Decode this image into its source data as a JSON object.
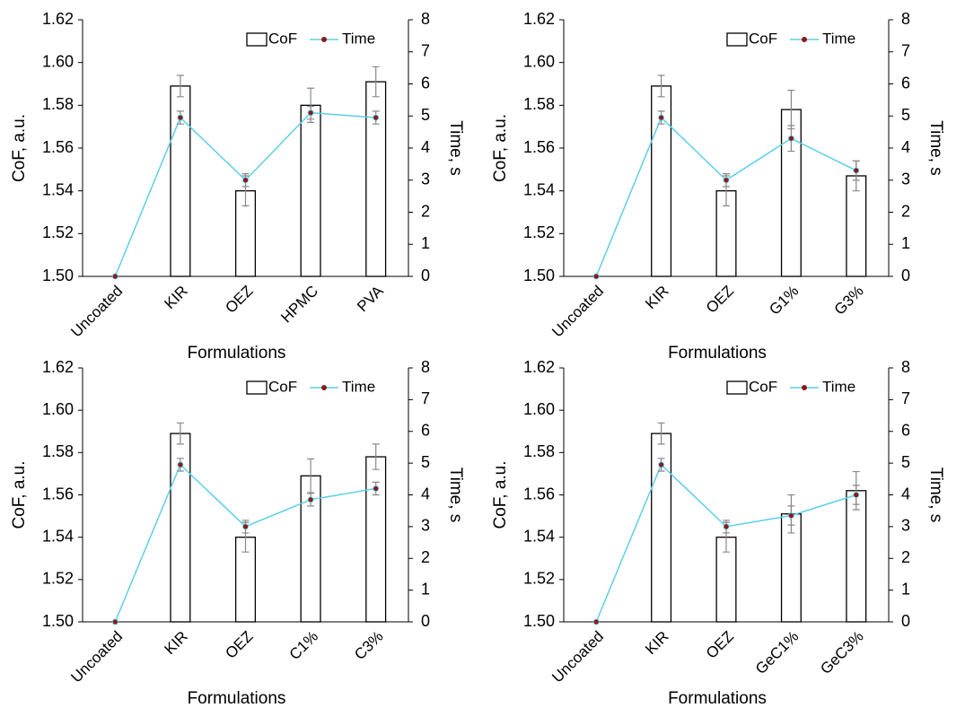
{
  "chart_data": [
    {
      "type": "bar_line",
      "xlabel": "Formulations",
      "ylabel": "CoF, a.u.",
      "y2label": "Time, s",
      "legend": "upper right",
      "categories": [
        "Uncoated",
        "KIR",
        "OEZ",
        "HPMC",
        "PVA"
      ],
      "ylim": [
        1.5,
        1.62
      ],
      "yticks": [
        {
          "value": 1.5,
          "label": "1.50"
        },
        1.52,
        1.54,
        1.56,
        1.58,
        {
          "value": 1.6,
          "label": "1.60"
        },
        1.62
      ],
      "y2lim": [
        0,
        8
      ],
      "y2ticks": [
        0,
        1,
        2,
        3,
        4,
        5,
        6,
        7,
        8
      ],
      "series": [
        {
          "name": "CoF",
          "kind": "bar",
          "color": "#ffffff",
          "values": [
            1.5,
            1.589,
            1.54,
            1.58,
            1.591
          ],
          "errors": [
            0,
            0.005,
            0.007,
            0.008,
            0.007
          ]
        },
        {
          "name": "Time",
          "kind": "line",
          "axis": "y2",
          "color": "#5bcfe8",
          "values": [
            0,
            4.95,
            3.0,
            5.1,
            4.95
          ],
          "errors": [
            0,
            0.2,
            0.2,
            0.2,
            0.2
          ]
        }
      ]
    },
    {
      "type": "bar_line",
      "xlabel": "Formulations",
      "ylabel": "CoF, a.u.",
      "y2label": "Time, s",
      "legend": "upper right",
      "categories": [
        "Uncoated",
        "KIR",
        "OEZ",
        "G1%",
        "G3%"
      ],
      "ylim": [
        1.5,
        1.62
      ],
      "yticks": [
        {
          "value": 1.5,
          "label": "1.50"
        },
        1.52,
        1.54,
        1.56,
        1.58,
        {
          "value": 1.6,
          "label": "1.60"
        },
        1.62
      ],
      "y2lim": [
        0,
        8
      ],
      "y2ticks": [
        0,
        1,
        2,
        3,
        4,
        5,
        6,
        7,
        8
      ],
      "series": [
        {
          "name": "CoF",
          "kind": "bar",
          "color": "#ffffff",
          "values": [
            1.5,
            1.589,
            1.54,
            1.578,
            1.547
          ],
          "errors": [
            0,
            0.005,
            0.007,
            0.009,
            0.007
          ]
        },
        {
          "name": "Time",
          "kind": "line",
          "axis": "y2",
          "color": "#5bcfe8",
          "values": [
            0,
            4.95,
            3.0,
            4.3,
            3.3
          ],
          "errors": [
            0,
            0.2,
            0.2,
            0.4,
            0.3
          ]
        }
      ]
    },
    {
      "type": "bar_line",
      "xlabel": "Formulations",
      "ylabel": "CoF, a.u.",
      "y2label": "Time, s",
      "legend": "upper right",
      "categories": [
        "Uncoated",
        "KIR",
        "OEZ",
        "C1%",
        "C3%"
      ],
      "ylim": [
        1.5,
        1.62
      ],
      "yticks": [
        {
          "value": 1.5,
          "label": "1.50"
        },
        1.52,
        1.54,
        1.56,
        1.58,
        {
          "value": 1.6,
          "label": "1.60"
        },
        1.62
      ],
      "y2lim": [
        0,
        8
      ],
      "y2ticks": [
        0,
        1,
        2,
        3,
        4,
        5,
        6,
        7,
        8
      ],
      "series": [
        {
          "name": "CoF",
          "kind": "bar",
          "color": "#ffffff",
          "values": [
            1.5,
            1.589,
            1.54,
            1.569,
            1.578
          ],
          "errors": [
            0,
            0.005,
            0.007,
            0.008,
            0.006
          ]
        },
        {
          "name": "Time",
          "kind": "line",
          "axis": "y2",
          "color": "#5bcfe8",
          "values": [
            0,
            4.95,
            3.0,
            3.85,
            4.2
          ],
          "errors": [
            0,
            0.2,
            0.2,
            0.2,
            0.2
          ]
        }
      ]
    },
    {
      "type": "bar_line",
      "xlabel": "Formulations",
      "ylabel": "CoF, a.u.",
      "y2label": "Time, s",
      "legend": "upper right",
      "categories": [
        "Uncoated",
        "KIR",
        "OEZ",
        "GeC1%",
        "GeC3%"
      ],
      "ylim": [
        1.5,
        1.62
      ],
      "yticks": [
        {
          "value": 1.5,
          "label": "1.50"
        },
        1.52,
        1.54,
        1.56,
        1.58,
        {
          "value": 1.6,
          "label": "1.60"
        },
        1.62
      ],
      "y2lim": [
        0,
        8
      ],
      "y2ticks": [
        0,
        1,
        2,
        3,
        4,
        5,
        6,
        7,
        8
      ],
      "series": [
        {
          "name": "CoF",
          "kind": "bar",
          "color": "#ffffff",
          "values": [
            1.5,
            1.589,
            1.54,
            1.551,
            1.562
          ],
          "errors": [
            0,
            0.005,
            0.007,
            0.009,
            0.009
          ]
        },
        {
          "name": "Time",
          "kind": "line",
          "axis": "y2",
          "color": "#5bcfe8",
          "values": [
            0,
            4.95,
            3.0,
            3.35,
            4.0
          ],
          "errors": [
            0,
            0.2,
            0.2,
            0.3,
            0.3
          ]
        }
      ]
    }
  ]
}
